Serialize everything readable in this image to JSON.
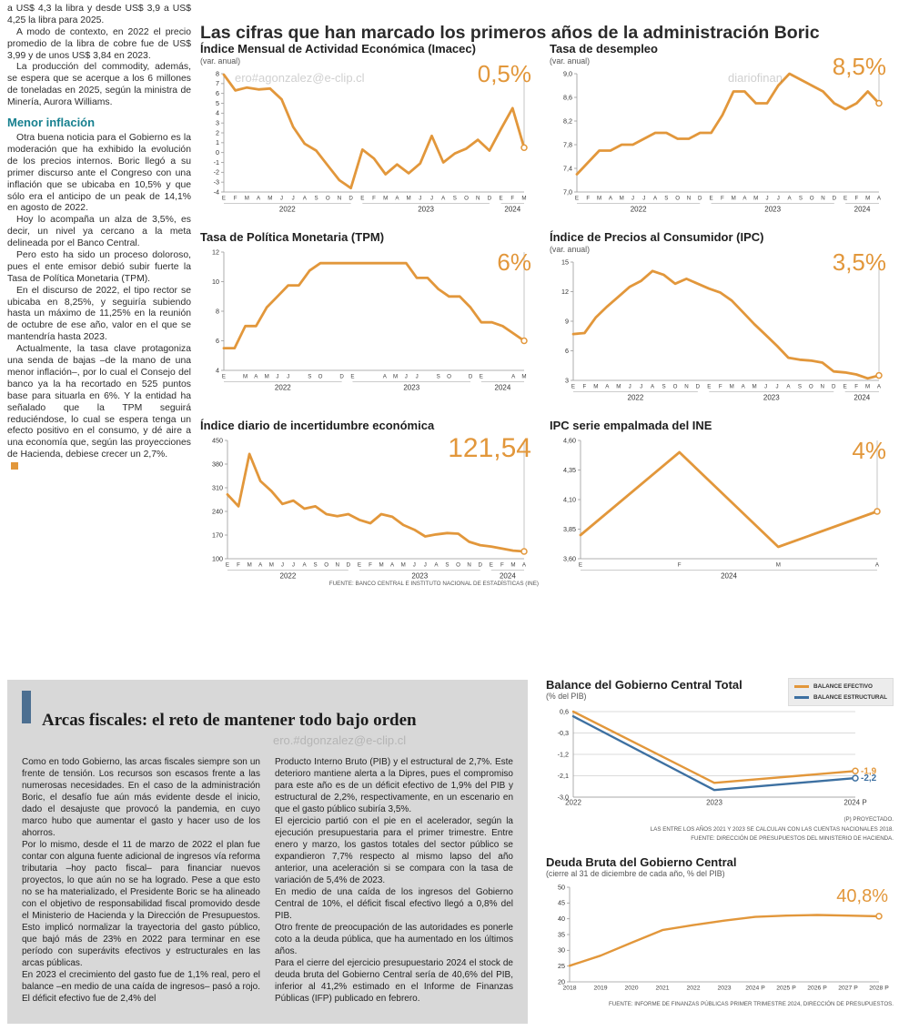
{
  "colors": {
    "orange": "#E2973B",
    "blue": "#3D70A1",
    "teal": "#17808F",
    "panel_bar": "#4C6F91"
  },
  "watermarks": {
    "top_left": "ero#agonzalez@e-clip.cl",
    "top_right": "diariofinan",
    "bottom": "ero.#dgonzalez@e-clip.cl"
  },
  "main_title": "Las cifras que han marcado los primeros años de la administración Boric",
  "left_article": {
    "paragraphs": [
      "a US$ 4,3 la libra y desde US$ 3,9 a US$ 4,25 la libra para 2025.",
      "A modo de contexto, en 2022 el precio promedio de la libra de cobre fue de US$ 3,99 y de unos US$ 3,84 en 2023.",
      "La producción del commodity, además, se espera que se acerque a los 6 millones de toneladas en 2025, según la ministra de Minería, Aurora Williams."
    ],
    "subhead": "Menor inflación",
    "paragraphs2": [
      "Otra buena noticia para el Gobierno es la moderación que ha exhibido la evolución de los precios internos. Boric llegó a su primer discurso ante el Congreso con una inflación que se ubicaba en 10,5% y que sólo era el anticipo de un peak de 14,1% en agosto de 2022.",
      "Hoy lo acompaña un alza de 3,5%, es decir, un nivel ya cercano a la meta delineada por el Banco Central.",
      "Pero esto ha sido un proceso doloroso, pues el ente emisor debió subir fuerte la Tasa de Política Monetaria (TPM).",
      "En el discurso de 2022, el tipo rector se ubicaba en 8,25%, y seguiría subiendo hasta un máximo de 11,25% en la reunión de octubre de ese año, valor en el que se mantendría hasta 2023.",
      "Actualmente, la tasa clave protagoniza una senda de bajas –de la mano de una menor inflación–, por lo cual el Consejo del banco ya la ha recortado en 525 puntos base para situarla en 6%. Y la entidad ha señalado que la TPM seguirá reduciéndose, lo cual se espera tenga un efecto positivo en el consumo, y dé aire a una economía que, según las proyecciones de Hacienda, debiese crecer un 2,7%."
    ]
  },
  "chart_data": [
    {
      "type": "line",
      "title": "Índice Mensual de Actividad Económica (Imacec)",
      "subtitle": "(var. anual)",
      "big_value": "0,5%",
      "ymin": -4,
      "ymax": 8,
      "ml": 26,
      "mr": 16,
      "lw": 2.8,
      "guide": true,
      "end_marker": true,
      "y_tick_labels": [
        "8",
        "7",
        "6",
        "5",
        "4",
        "3",
        "2",
        "1",
        "0",
        "-1",
        "-2",
        "-3",
        "-4"
      ],
      "y_tick_values": [
        8,
        7,
        6,
        5,
        4,
        3,
        2,
        1,
        0,
        -1,
        -2,
        -3,
        -4
      ],
      "x_labels": [
        "E",
        "F",
        "M",
        "A",
        "M",
        "J",
        "J",
        "A",
        "S",
        "O",
        "N",
        "D",
        "E",
        "F",
        "M",
        "A",
        "M",
        "J",
        "J",
        "A",
        "S",
        "O",
        "N",
        "D",
        "E",
        "F",
        "M"
      ],
      "years": [
        {
          "label": "2022",
          "from": 0,
          "to": 11
        },
        {
          "label": "2023",
          "from": 12,
          "to": 23
        },
        {
          "label": "2024",
          "from": 24,
          "to": 26
        }
      ],
      "series": [
        {
          "color": "orange",
          "values": [
            7.9,
            6.3,
            6.6,
            6.4,
            6.5,
            5.4,
            2.6,
            0.9,
            0.2,
            -1.3,
            -2.8,
            -3.6,
            0.3,
            -0.6,
            -2.2,
            -1.2,
            -2.1,
            -1.1,
            1.7,
            -1.0,
            -0.1,
            0.4,
            1.3,
            0.2,
            2.4,
            4.5,
            0.5
          ]
        }
      ]
    },
    {
      "type": "line",
      "title": "Tasa de desempleo",
      "subtitle": "(var. anual)",
      "big_value": "8,5%",
      "ymin": 7.0,
      "ymax": 9.0,
      "ml": 30,
      "mr": 16,
      "lw": 2.8,
      "guide": true,
      "end_marker": true,
      "y_tick_labels": [
        "9,0",
        "8,6",
        "8,2",
        "7,8",
        "7,4",
        "7,0"
      ],
      "y_tick_values": [
        9.0,
        8.6,
        8.2,
        7.8,
        7.4,
        7.0
      ],
      "x_labels": [
        "E",
        "F",
        "M",
        "A",
        "M",
        "J",
        "J",
        "A",
        "S",
        "O",
        "N",
        "D",
        "E",
        "F",
        "M",
        "A",
        "M",
        "J",
        "J",
        "A",
        "S",
        "O",
        "N",
        "D",
        "E",
        "F",
        "M",
        "A"
      ],
      "years": [
        {
          "label": "2022",
          "from": 0,
          "to": 11
        },
        {
          "label": "2023",
          "from": 12,
          "to": 23
        },
        {
          "label": "2024",
          "from": 24,
          "to": 27
        }
      ],
      "series": [
        {
          "color": "orange",
          "values": [
            7.3,
            7.5,
            7.7,
            7.7,
            7.8,
            7.8,
            7.9,
            8.0,
            8.0,
            7.9,
            7.9,
            8.0,
            8.0,
            8.3,
            8.7,
            8.7,
            8.5,
            8.5,
            8.8,
            9.0,
            8.9,
            8.8,
            8.7,
            8.5,
            8.4,
            8.5,
            8.7,
            8.5
          ]
        }
      ]
    },
    {
      "type": "line",
      "title": "Tasa de Política Monetaria (TPM)",
      "big_value": "6%",
      "ymin": 4,
      "ymax": 12,
      "ml": 26,
      "mr": 16,
      "lw": 2.8,
      "guide": true,
      "end_marker": true,
      "y_tick_labels": [
        "12",
        "10",
        "8",
        "6",
        "4"
      ],
      "y_tick_values": [
        12,
        10,
        8,
        6,
        4
      ],
      "x_labels": [
        "E",
        "",
        "M",
        "A",
        "M",
        "J",
        "J",
        "",
        "S",
        "O",
        "",
        "D",
        "E",
        "",
        "",
        "A",
        "M",
        "J",
        "J",
        "",
        "S",
        "O",
        "",
        "D",
        "E",
        "",
        "",
        "A",
        "M"
      ],
      "years": [
        {
          "label": "2022",
          "from": 0,
          "to": 11
        },
        {
          "label": "2023",
          "from": 12,
          "to": 23
        },
        {
          "label": "2024",
          "from": 24,
          "to": 28
        }
      ],
      "series": [
        {
          "color": "orange",
          "values": [
            5.5,
            5.5,
            7.0,
            7.0,
            8.25,
            9.0,
            9.75,
            9.75,
            10.75,
            11.25,
            11.25,
            11.25,
            11.25,
            11.25,
            11.25,
            11.25,
            11.25,
            11.25,
            10.25,
            10.25,
            9.5,
            9.0,
            9.0,
            8.25,
            7.25,
            7.25,
            7.0,
            6.5,
            6.0
          ]
        }
      ]
    },
    {
      "type": "line",
      "title": "Índice de Precios al Consumidor (IPC)",
      "subtitle": "(var. anual)",
      "big_value": "3,5%",
      "ymin": 3,
      "ymax": 15,
      "ml": 26,
      "mr": 16,
      "lw": 2.8,
      "guide": true,
      "end_marker": true,
      "y_tick_labels": [
        "15",
        "12",
        "9",
        "6",
        "3"
      ],
      "y_tick_values": [
        15,
        12,
        9,
        6,
        3
      ],
      "x_labels": [
        "E",
        "F",
        "M",
        "A",
        "M",
        "J",
        "J",
        "A",
        "S",
        "O",
        "N",
        "D",
        "E",
        "F",
        "M",
        "A",
        "M",
        "J",
        "J",
        "A",
        "S",
        "O",
        "N",
        "D",
        "E",
        "F",
        "M",
        "A"
      ],
      "years": [
        {
          "label": "2022",
          "from": 0,
          "to": 11
        },
        {
          "label": "2023",
          "from": 12,
          "to": 23
        },
        {
          "label": "2024",
          "from": 24,
          "to": 27
        }
      ],
      "series": [
        {
          "color": "orange",
          "values": [
            7.7,
            7.8,
            9.4,
            10.5,
            11.5,
            12.5,
            13.1,
            14.1,
            13.7,
            12.8,
            13.3,
            12.8,
            12.3,
            11.9,
            11.1,
            9.9,
            8.7,
            7.6,
            6.5,
            5.3,
            5.1,
            5.0,
            4.8,
            3.9,
            3.8,
            3.6,
            3.2,
            3.5
          ]
        }
      ]
    },
    {
      "type": "line",
      "title": "Índice diario de incertidumbre económica",
      "big_value": "121,54",
      "ymin": 100,
      "ymax": 450,
      "ml": 30,
      "mr": 16,
      "lw": 2.8,
      "guide": true,
      "end_marker": true,
      "y_tick_labels": [
        "450",
        "380",
        "310",
        "240",
        "170",
        "100"
      ],
      "y_tick_values": [
        450,
        380,
        310,
        240,
        170,
        100
      ],
      "x_labels": [
        "E",
        "F",
        "M",
        "A",
        "M",
        "J",
        "J",
        "A",
        "S",
        "O",
        "N",
        "D",
        "E",
        "F",
        "M",
        "A",
        "M",
        "J",
        "J",
        "A",
        "S",
        "O",
        "N",
        "D",
        "E",
        "F",
        "M",
        "A"
      ],
      "years": [
        {
          "label": "2022",
          "from": 0,
          "to": 11
        },
        {
          "label": "2023",
          "from": 12,
          "to": 23
        },
        {
          "label": "2024",
          "from": 24,
          "to": 27
        }
      ],
      "series": [
        {
          "color": "orange",
          "values": [
            290,
            255,
            410,
            330,
            300,
            262,
            272,
            248,
            255,
            232,
            226,
            232,
            215,
            205,
            232,
            224,
            200,
            186,
            166,
            172,
            176,
            174,
            150,
            140,
            136,
            130,
            124,
            121.54
          ]
        }
      ],
      "source": "FUENTE: BANCO CENTRAL E INSTITUTO NACIONAL DE ESTADÍSTICAS (INE)"
    },
    {
      "type": "line",
      "title": "IPC serie empalmada del INE",
      "big_value": "4%",
      "ymin": 3.6,
      "ymax": 4.6,
      "ml": 34,
      "mr": 18,
      "lw": 2.8,
      "guide": true,
      "end_marker": true,
      "y_tick_labels": [
        "4,60",
        "4,35",
        "4,10",
        "3,85",
        "3,60"
      ],
      "y_tick_values": [
        4.6,
        4.35,
        4.1,
        3.85,
        3.6
      ],
      "x_labels": [
        "E",
        "F",
        "M",
        "A"
      ],
      "years": [
        {
          "label": "2024",
          "from": 0,
          "to": 3
        }
      ],
      "series": [
        {
          "color": "orange",
          "values": [
            3.8,
            4.5,
            3.7,
            4.0
          ]
        }
      ]
    },
    {
      "type": "line",
      "title": "Balance del Gobierno Central Total",
      "subtitle": "(% del PIB)",
      "ymin": -3.0,
      "ymax": 0.6,
      "ml": 30,
      "mr": 42,
      "lw": 2.4,
      "grid": true,
      "end_marker": true,
      "xfs": 8,
      "y_tick_labels": [
        "0,6",
        "-0,3",
        "-1,2",
        "-2,1",
        "-3,0"
      ],
      "y_tick_values": [
        0.6,
        -0.3,
        -1.2,
        -2.1,
        -3.0
      ],
      "x_labels": [
        "2022",
        "2023",
        "2024 P"
      ],
      "legend": [
        {
          "label": "BALANCE EFECTIVO",
          "color": "orange"
        },
        {
          "label": "BALANCE ESTRUCTURAL",
          "color": "blue"
        }
      ],
      "series": [
        {
          "color": "orange",
          "values": [
            0.6,
            -2.4,
            -1.9
          ],
          "end_label": "-1,9"
        },
        {
          "color": "blue",
          "values": [
            0.4,
            -2.7,
            -2.2
          ],
          "end_label": "-2,2"
        }
      ],
      "notes": [
        "(P) PROYECTADO.",
        "LAS ENTRE LOS AÑOS 2021 Y 2023 SE CALCULAN CON LAS CUENTAS NACIONALES 2018.",
        "FUENTE: DIRECCIÓN DE PRESUPUESTOS DEL MINISTERIO DE HACIENDA."
      ]
    },
    {
      "type": "line",
      "title": "Deuda Bruta del Gobierno Central",
      "subtitle": "(cierre al 31 de diciembre de cada año, % del PIB)",
      "big_value": "40,8%",
      "ymin": 20,
      "ymax": 50,
      "ml": 26,
      "mr": 16,
      "lw": 2.4,
      "end_marker": true,
      "xfs": 6.8,
      "y_tick_labels": [
        "50",
        "45",
        "40",
        "35",
        "30",
        "25",
        "20"
      ],
      "y_tick_values": [
        50,
        45,
        40,
        35,
        30,
        25,
        20
      ],
      "x_labels": [
        "2018",
        "2019",
        "2020",
        "2021",
        "2022",
        "2023",
        "2024 P",
        "2025 P",
        "2026 P",
        "2027 P",
        "2028 P"
      ],
      "series": [
        {
          "color": "orange",
          "values": [
            25.1,
            28.3,
            32.4,
            36.4,
            38.0,
            39.4,
            40.6,
            41.0,
            41.2,
            41.0,
            40.8
          ]
        }
      ],
      "source": "FUENTE: INFORME DE FINANZAS PÚBLICAS PRIMER TRIMESTRE 2024, DIRECCIÓN DE PRESUPUESTOS."
    }
  ],
  "fiscal_panel": {
    "title": "Arcas fiscales: el reto de mantener todo bajo orden",
    "col1": [
      "Como en todo Gobierno, las arcas fiscales siempre son un frente de tensión. Los recursos son escasos frente a las numerosas necesidades. En el caso de la administración Boric, el desafío fue aún más evidente desde el inicio, dado el desajuste que provocó la pandemia, en cuyo marco hubo que aumentar el gasto y hacer uso de los ahorros.",
      "Por lo mismo, desde el 11 de marzo de 2022 el plan fue contar con alguna fuente adicional de ingresos vía reforma tributaria –hoy pacto fiscal– para financiar nuevos proyectos, lo que aún no se ha logrado. Pese a que esto no se ha materializado, el Presidente Boric se ha alineado con el objetivo de responsabilidad fiscal promovido desde el Ministerio de Hacienda y la Dirección de Presupuestos. Esto implicó normalizar la trayectoria del gasto público, que bajó más de 23% en 2022 para terminar en ese período con superávits efectivos y estructurales en las arcas públicas.",
      "En 2023 el crecimiento del gasto fue de 1,1% real, pero el balance –en medio de una caída de ingresos– pasó a rojo. El déficit efectivo fue de 2,4% del"
    ],
    "col2": [
      "Producto Interno Bruto (PIB) y el estructural de 2,7%. Este deterioro mantiene alerta a la Dipres, pues el compromiso para este año es de un déficit efectivo de 1,9% del PIB y estructural de 2,2%, respectivamente, en un escenario en que el gasto público subiría 3,5%.",
      "El ejercicio partió con el pie en el acelerador, según la ejecución presupuestaria para el primer trimestre. Entre enero y marzo, los gastos totales del sector público se expandieron 7,7% respecto al mismo lapso del año anterior, una aceleración si se compara con la tasa de variación de 5,4% de 2023.",
      "En medio de una caída de los ingresos del Gobierno Central de 10%, el déficit fiscal efectivo llegó a 0,8% del PIB.",
      "Otro frente de preocupación de las autoridades es ponerle coto a la deuda pública, que ha aumentado en los últimos años.",
      "Para el cierre del ejercicio presupuestario 2024 el stock de deuda bruta del Gobierno Central sería de 40,6% del PIB, inferior al 41,2% estimado en el Informe de Finanzas Públicas (IFP) publicado en febrero."
    ]
  }
}
